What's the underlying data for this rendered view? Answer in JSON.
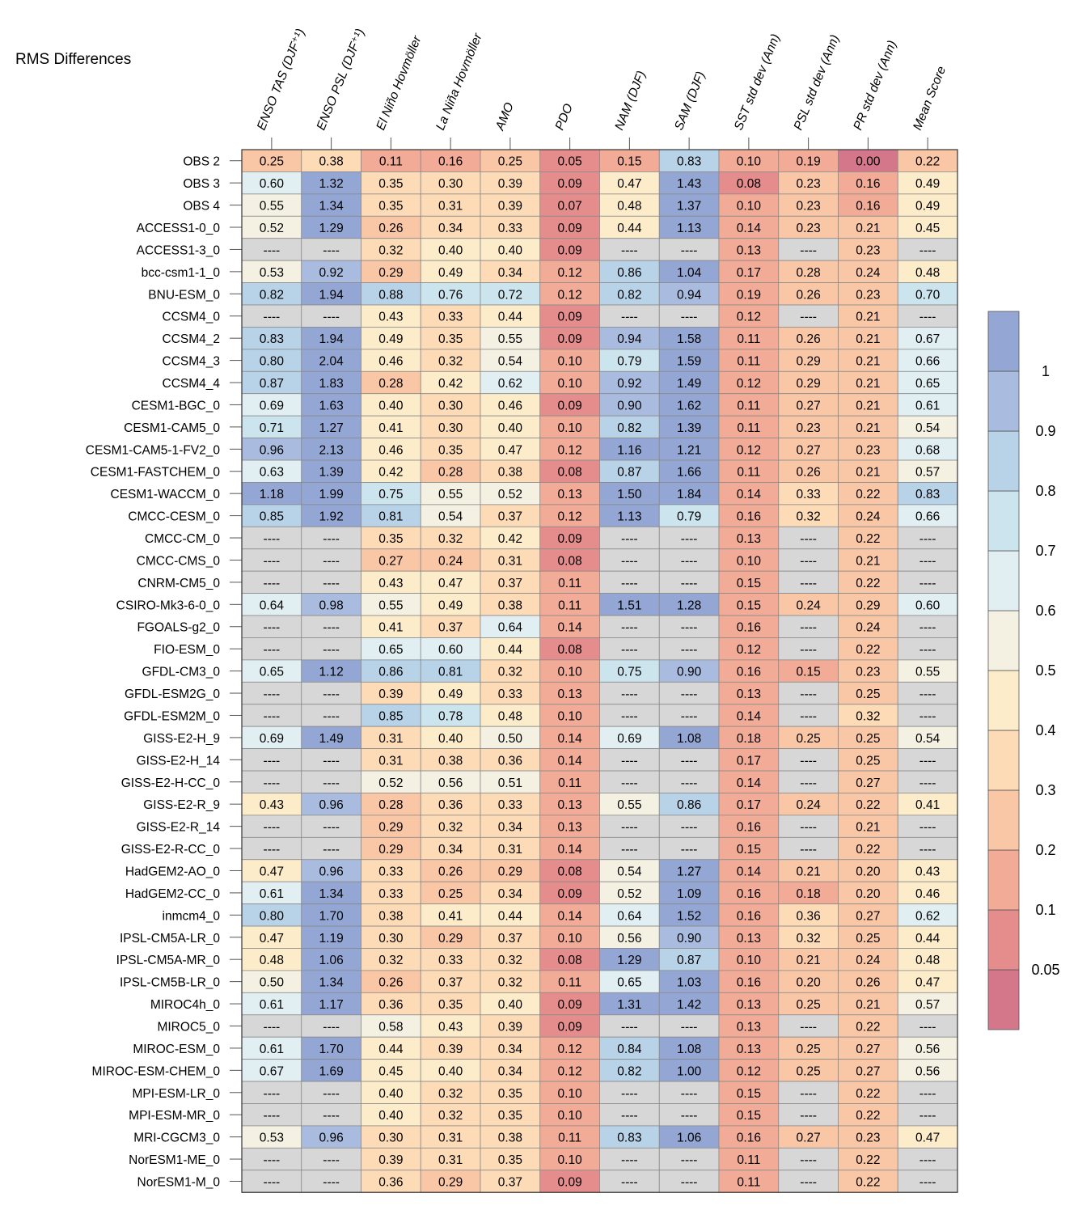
{
  "chart_data": {
    "type": "heatmap",
    "title": "RMS Differences",
    "missing_label": "----",
    "columns": [
      "ENSO TAS (DJF⁺¹)",
      "ENSO PSL (DJF⁺¹)",
      "El Niño Hovmöller",
      "La Niña Hovmöller",
      "AMO",
      "PDO",
      "NAM (DJF)",
      "SAM (DJF)",
      "SST std dev (Ann)",
      "PSL std dev (Ann)",
      "PR std dev (Ann)",
      "Mean Score"
    ],
    "rows": [
      "OBS 2",
      "OBS 3",
      "OBS 4",
      "ACCESS1-0_0",
      "ACCESS1-3_0",
      "bcc-csm1-1_0",
      "BNU-ESM_0",
      "CCSM4_0",
      "CCSM4_2",
      "CCSM4_3",
      "CCSM4_4",
      "CESM1-BGC_0",
      "CESM1-CAM5_0",
      "CESM1-CAM5-1-FV2_0",
      "CESM1-FASTCHEM_0",
      "CESM1-WACCM_0",
      "CMCC-CESM_0",
      "CMCC-CM_0",
      "CMCC-CMS_0",
      "CNRM-CM5_0",
      "CSIRO-Mk3-6-0_0",
      "FGOALS-g2_0",
      "FIO-ESM_0",
      "GFDL-CM3_0",
      "GFDL-ESM2G_0",
      "GFDL-ESM2M_0",
      "GISS-E2-H_9",
      "GISS-E2-H_14",
      "GISS-E2-H-CC_0",
      "GISS-E2-R_9",
      "GISS-E2-R_14",
      "GISS-E2-R-CC_0",
      "HadGEM2-AO_0",
      "HadGEM2-CC_0",
      "inmcm4_0",
      "IPSL-CM5A-LR_0",
      "IPSL-CM5A-MR_0",
      "IPSL-CM5B-LR_0",
      "MIROC4h_0",
      "MIROC5_0",
      "MIROC-ESM_0",
      "MIROC-ESM-CHEM_0",
      "MPI-ESM-LR_0",
      "MPI-ESM-MR_0",
      "MRI-CGCM3_0",
      "NorESM1-ME_0",
      "NorESM1-M_0"
    ],
    "values": [
      [
        0.25,
        0.38,
        0.11,
        0.16,
        0.25,
        0.05,
        0.15,
        0.83,
        0.1,
        0.19,
        0.0,
        0.22
      ],
      [
        0.6,
        1.32,
        0.35,
        0.3,
        0.39,
        0.09,
        0.47,
        1.43,
        0.08,
        0.23,
        0.16,
        0.49
      ],
      [
        0.55,
        1.34,
        0.35,
        0.31,
        0.39,
        0.07,
        0.48,
        1.37,
        0.1,
        0.23,
        0.16,
        0.49
      ],
      [
        0.52,
        1.29,
        0.26,
        0.34,
        0.33,
        0.09,
        0.44,
        1.13,
        0.14,
        0.23,
        0.21,
        0.45
      ],
      [
        null,
        null,
        0.32,
        0.4,
        0.4,
        0.09,
        null,
        null,
        0.13,
        null,
        0.23,
        null
      ],
      [
        0.53,
        0.92,
        0.29,
        0.49,
        0.34,
        0.12,
        0.86,
        1.04,
        0.17,
        0.28,
        0.24,
        0.48
      ],
      [
        0.82,
        1.94,
        0.88,
        0.76,
        0.72,
        0.12,
        0.82,
        0.94,
        0.19,
        0.26,
        0.23,
        0.7
      ],
      [
        null,
        null,
        0.43,
        0.33,
        0.44,
        0.09,
        null,
        null,
        0.12,
        null,
        0.21,
        null
      ],
      [
        0.83,
        1.94,
        0.49,
        0.35,
        0.55,
        0.09,
        0.94,
        1.58,
        0.11,
        0.26,
        0.21,
        0.67
      ],
      [
        0.8,
        2.04,
        0.46,
        0.32,
        0.54,
        0.1,
        0.79,
        1.59,
        0.11,
        0.29,
        0.21,
        0.66
      ],
      [
        0.87,
        1.83,
        0.28,
        0.42,
        0.62,
        0.1,
        0.92,
        1.49,
        0.12,
        0.29,
        0.21,
        0.65
      ],
      [
        0.69,
        1.63,
        0.4,
        0.3,
        0.46,
        0.09,
        0.9,
        1.62,
        0.11,
        0.27,
        0.21,
        0.61
      ],
      [
        0.71,
        1.27,
        0.41,
        0.3,
        0.4,
        0.1,
        0.82,
        1.39,
        0.11,
        0.23,
        0.21,
        0.54
      ],
      [
        0.96,
        2.13,
        0.46,
        0.35,
        0.47,
        0.12,
        1.16,
        1.21,
        0.12,
        0.27,
        0.23,
        0.68
      ],
      [
        0.63,
        1.39,
        0.42,
        0.28,
        0.38,
        0.08,
        0.87,
        1.66,
        0.11,
        0.26,
        0.21,
        0.57
      ],
      [
        1.18,
        1.99,
        0.75,
        0.55,
        0.52,
        0.13,
        1.5,
        1.84,
        0.14,
        0.33,
        0.22,
        0.83
      ],
      [
        0.85,
        1.92,
        0.81,
        0.54,
        0.37,
        0.12,
        1.13,
        0.79,
        0.16,
        0.32,
        0.24,
        0.66
      ],
      [
        null,
        null,
        0.35,
        0.32,
        0.42,
        0.09,
        null,
        null,
        0.13,
        null,
        0.22,
        null
      ],
      [
        null,
        null,
        0.27,
        0.24,
        0.31,
        0.08,
        null,
        null,
        0.1,
        null,
        0.21,
        null
      ],
      [
        null,
        null,
        0.43,
        0.47,
        0.37,
        0.11,
        null,
        null,
        0.15,
        null,
        0.22,
        null
      ],
      [
        0.64,
        0.98,
        0.55,
        0.49,
        0.38,
        0.11,
        1.51,
        1.28,
        0.15,
        0.24,
        0.29,
        0.6
      ],
      [
        null,
        null,
        0.41,
        0.37,
        0.64,
        0.14,
        null,
        null,
        0.16,
        null,
        0.24,
        null
      ],
      [
        null,
        null,
        0.65,
        0.6,
        0.44,
        0.08,
        null,
        null,
        0.12,
        null,
        0.22,
        null
      ],
      [
        0.65,
        1.12,
        0.86,
        0.81,
        0.32,
        0.1,
        0.75,
        0.9,
        0.16,
        0.15,
        0.23,
        0.55
      ],
      [
        null,
        null,
        0.39,
        0.49,
        0.33,
        0.13,
        null,
        null,
        0.13,
        null,
        0.25,
        null
      ],
      [
        null,
        null,
        0.85,
        0.78,
        0.48,
        0.1,
        null,
        null,
        0.14,
        null,
        0.32,
        null
      ],
      [
        0.69,
        1.49,
        0.31,
        0.4,
        0.5,
        0.14,
        0.69,
        1.08,
        0.18,
        0.25,
        0.25,
        0.54
      ],
      [
        null,
        null,
        0.31,
        0.38,
        0.36,
        0.14,
        null,
        null,
        0.17,
        null,
        0.25,
        null
      ],
      [
        null,
        null,
        0.52,
        0.56,
        0.51,
        0.11,
        null,
        null,
        0.14,
        null,
        0.27,
        null
      ],
      [
        0.43,
        0.96,
        0.28,
        0.36,
        0.33,
        0.13,
        0.55,
        0.86,
        0.17,
        0.24,
        0.22,
        0.41
      ],
      [
        null,
        null,
        0.29,
        0.32,
        0.34,
        0.13,
        null,
        null,
        0.16,
        null,
        0.21,
        null
      ],
      [
        null,
        null,
        0.29,
        0.34,
        0.31,
        0.14,
        null,
        null,
        0.15,
        null,
        0.22,
        null
      ],
      [
        0.47,
        0.96,
        0.33,
        0.26,
        0.29,
        0.08,
        0.54,
        1.27,
        0.14,
        0.21,
        0.2,
        0.43
      ],
      [
        0.61,
        1.34,
        0.33,
        0.25,
        0.34,
        0.09,
        0.52,
        1.09,
        0.16,
        0.18,
        0.2,
        0.46
      ],
      [
        0.8,
        1.7,
        0.38,
        0.41,
        0.44,
        0.14,
        0.64,
        1.52,
        0.16,
        0.36,
        0.27,
        0.62
      ],
      [
        0.47,
        1.19,
        0.3,
        0.29,
        0.37,
        0.1,
        0.56,
        0.9,
        0.13,
        0.32,
        0.25,
        0.44
      ],
      [
        0.48,
        1.06,
        0.32,
        0.33,
        0.32,
        0.08,
        1.29,
        0.87,
        0.1,
        0.21,
        0.24,
        0.48
      ],
      [
        0.5,
        1.34,
        0.26,
        0.37,
        0.32,
        0.11,
        0.65,
        1.03,
        0.16,
        0.2,
        0.26,
        0.47
      ],
      [
        0.61,
        1.17,
        0.36,
        0.35,
        0.4,
        0.09,
        1.31,
        1.42,
        0.13,
        0.25,
        0.21,
        0.57
      ],
      [
        null,
        null,
        0.58,
        0.43,
        0.39,
        0.09,
        null,
        null,
        0.13,
        null,
        0.22,
        null
      ],
      [
        0.61,
        1.7,
        0.44,
        0.39,
        0.34,
        0.12,
        0.84,
        1.08,
        0.13,
        0.25,
        0.27,
        0.56
      ],
      [
        0.67,
        1.69,
        0.45,
        0.4,
        0.34,
        0.12,
        0.82,
        1.0,
        0.12,
        0.25,
        0.27,
        0.56
      ],
      [
        null,
        null,
        0.4,
        0.32,
        0.35,
        0.1,
        null,
        null,
        0.15,
        null,
        0.22,
        null
      ],
      [
        null,
        null,
        0.4,
        0.32,
        0.35,
        0.1,
        null,
        null,
        0.15,
        null,
        0.22,
        null
      ],
      [
        0.53,
        0.96,
        0.3,
        0.31,
        0.38,
        0.11,
        0.83,
        1.06,
        0.16,
        0.27,
        0.23,
        0.47
      ],
      [
        null,
        null,
        0.39,
        0.31,
        0.35,
        0.1,
        null,
        null,
        0.11,
        null,
        0.22,
        null
      ],
      [
        null,
        null,
        0.36,
        0.29,
        0.37,
        0.09,
        null,
        null,
        0.11,
        null,
        0.22,
        null
      ]
    ],
    "colorbar": {
      "levels": [
        0.05,
        0.1,
        0.2,
        0.3,
        0.4,
        0.5,
        0.6,
        0.7,
        0.8,
        0.9,
        1
      ],
      "labels": [
        "0.05",
        "0.1",
        "0.2",
        "0.3",
        "0.4",
        "0.5",
        "0.6",
        "0.7",
        "0.8",
        "0.9",
        "1"
      ],
      "colors": [
        "#d4778b",
        "#e58c8c",
        "#f1ab96",
        "#f9c6a6",
        "#fcdbb6",
        "#fdecc9",
        "#f4f1e3",
        "#e1eff3",
        "#cce4ee",
        "#b8d2e8",
        "#a9bcdf",
        "#93a6d4"
      ],
      "missing_color": "#d7d7d7"
    }
  }
}
